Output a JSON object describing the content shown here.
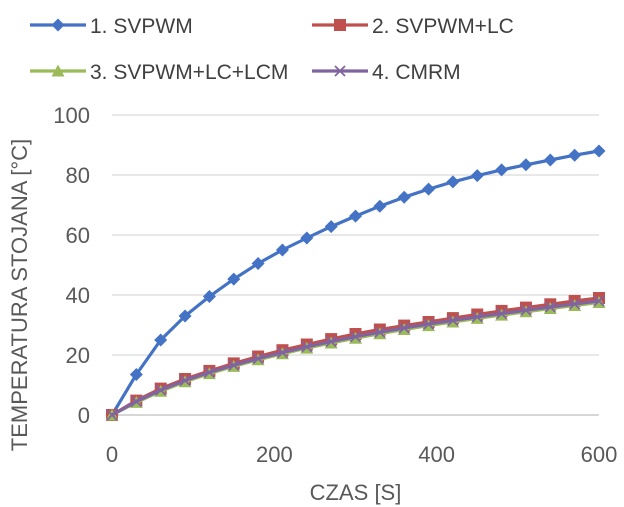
{
  "chart_data": {
    "type": "line",
    "xlabel": "CZAS [S]",
    "ylabel": "TEMPERATURA STOJANA [°C]",
    "xlim": [
      0,
      600
    ],
    "ylim": [
      0,
      100
    ],
    "x_ticks": [
      0,
      200,
      400,
      600
    ],
    "y_ticks": [
      0,
      20,
      40,
      60,
      80,
      100
    ],
    "grid": "horizontal",
    "legend_position": "top",
    "x": [
      0,
      30,
      60,
      90,
      120,
      150,
      180,
      210,
      240,
      270,
      300,
      330,
      360,
      390,
      420,
      450,
      480,
      510,
      540,
      570,
      600
    ],
    "series": [
      {
        "name": "1. SVPWM",
        "color": "#4472C4",
        "marker": "diamond",
        "values": [
          0,
          13.5,
          25,
          33,
          39.5,
          45.3,
          50.5,
          55,
          59,
          62.8,
          66.3,
          69.6,
          72.6,
          75.3,
          77.7,
          79.8,
          81.7,
          83.4,
          85,
          86.6,
          88
        ]
      },
      {
        "name": "2. SVPWM+LC",
        "color": "#C0504D",
        "marker": "square",
        "values": [
          0,
          4.8,
          8.8,
          12,
          14.7,
          17.2,
          19.5,
          21.6,
          23.5,
          25.3,
          27,
          28.5,
          29.8,
          31,
          32.3,
          33.5,
          34.7,
          35.8,
          36.9,
          38,
          39
        ]
      },
      {
        "name": "3. SVPWM+LC+LCM",
        "color": "#9BBB59",
        "marker": "triangle",
        "values": [
          0,
          4.2,
          7.9,
          11.1,
          13.8,
          16.2,
          18.4,
          20.4,
          22.3,
          24,
          25.6,
          27.1,
          28.5,
          29.8,
          31,
          32.2,
          33.3,
          34.4,
          35.5,
          36.5,
          37.5
        ]
      },
      {
        "name": "4. CMRM",
        "color": "#8064A2",
        "marker": "x",
        "values": [
          0,
          4.5,
          8.3,
          11.5,
          14.2,
          16.6,
          18.8,
          20.8,
          22.7,
          24.5,
          26.1,
          27.6,
          29,
          30.3,
          31.5,
          32.7,
          33.8,
          34.9,
          36,
          37,
          38
        ]
      }
    ]
  }
}
